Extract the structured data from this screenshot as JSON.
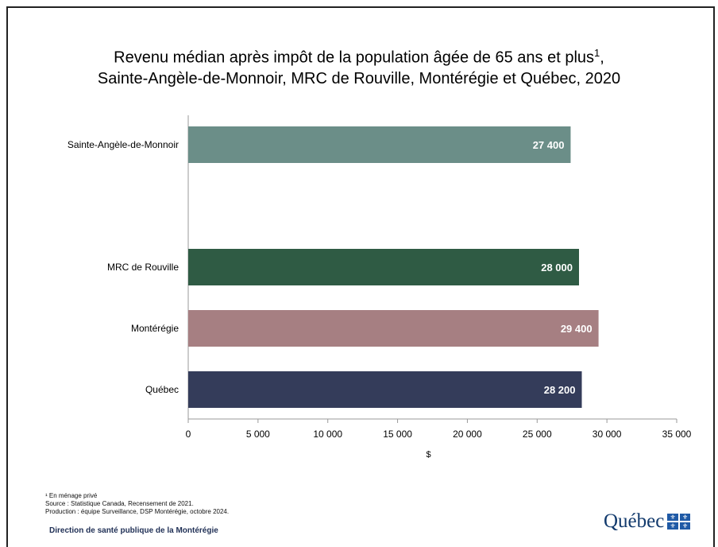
{
  "chart_data": {
    "type": "bar",
    "orientation": "horizontal",
    "title_line1": "Revenu médian après impôt de la population âgée de 65 ans et plus",
    "title_footnote_marker": "1",
    "title_suffix": ",",
    "title_line2": "Sainte-Angèle-de-Monnoir, MRC de Rouville, Montérégie et Québec, 2020",
    "xlabel": "$",
    "xlim": [
      0,
      35000
    ],
    "xticks": [
      0,
      5000,
      10000,
      15000,
      20000,
      25000,
      30000,
      35000
    ],
    "xtick_labels": [
      "0",
      "5 000",
      "10 000",
      "15 000",
      "20 000",
      "25 000",
      "30 000",
      "35 000"
    ],
    "categories": [
      "Sainte-Angèle-de-Monnoir",
      "MRC de Rouville",
      "Montérégie",
      "Québec"
    ],
    "values": [
      27400,
      28000,
      29400,
      28200
    ],
    "value_labels": [
      "27 400",
      "28 000",
      "29 400",
      "28 200"
    ],
    "colors": [
      "#6b8e88",
      "#2f5b44",
      "#a67f82",
      "#343c5a"
    ],
    "grid": false
  },
  "footnotes": {
    "note1": "¹ En ménage privé",
    "source": "Source : Statistique Canada, Recensement de 2021.",
    "production": "Production : équipe Surveillance, DSP Montérégie, octobre 2024."
  },
  "organization": "Direction de santé publique de la Montérégie",
  "logo": {
    "text": "Québec",
    "flag_icon": "fleur-de-lis-flag-icon"
  }
}
